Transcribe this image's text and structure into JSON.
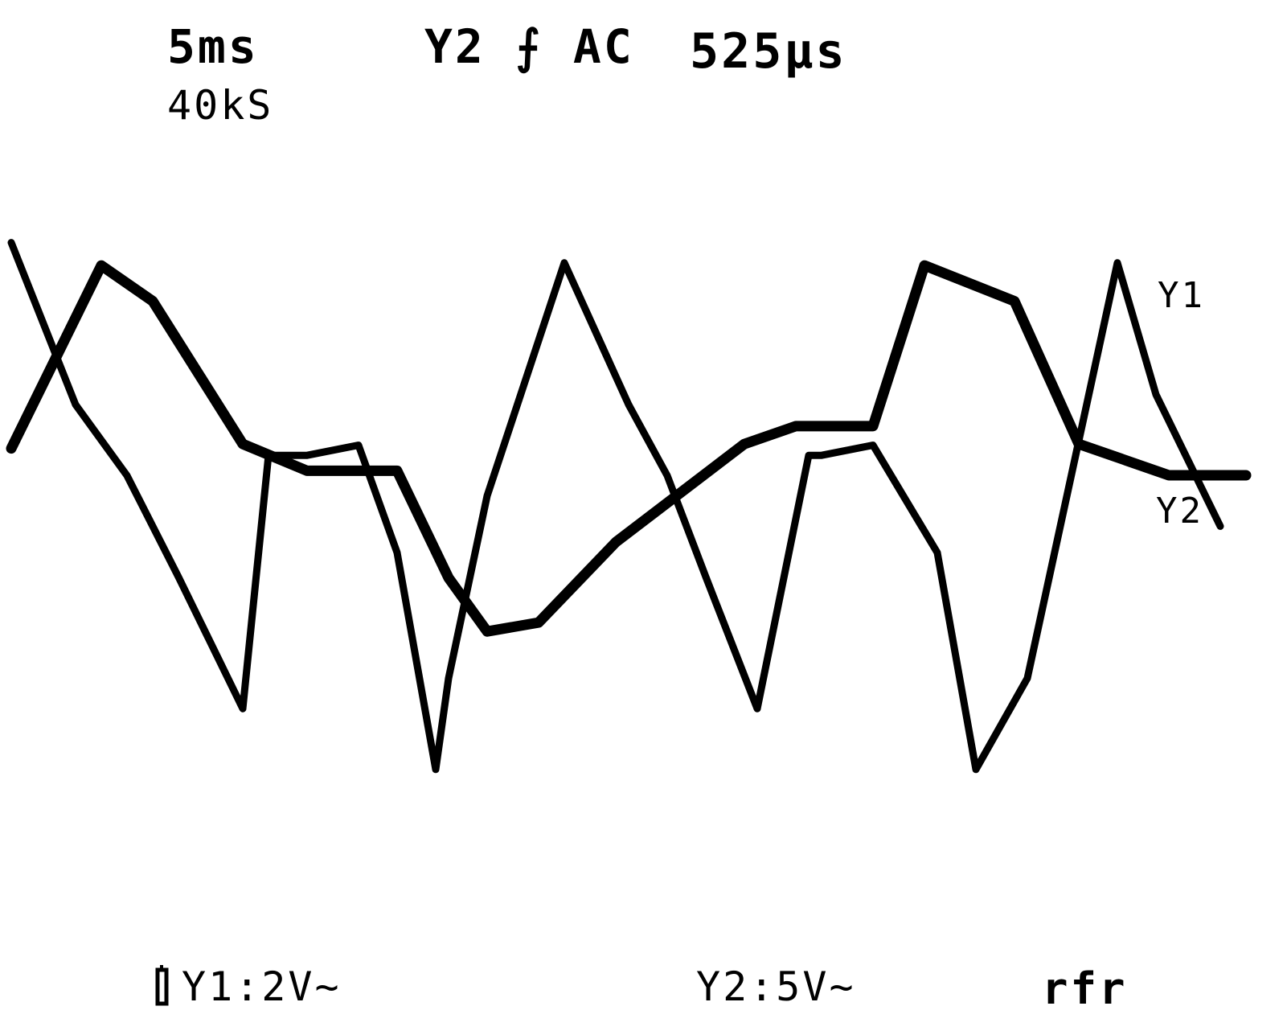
{
  "header": {
    "timebase": "5ms",
    "sample_rate": "40kS",
    "trigger": "Y2 ⨍ AC",
    "trigger_delay": "525µs"
  },
  "footer": {
    "channel1_scale": "Y1:2V~",
    "channel2_scale": "Y2:5V~",
    "mode": "rfr"
  },
  "chart_data": {
    "type": "line",
    "title": "",
    "xlabel": "",
    "ylabel": "",
    "grid": false,
    "legend": "inline trace labels at right",
    "series": [
      {
        "name": "Y1",
        "x": [
          -0.5,
          3,
          5,
          8.5,
          11,
          14.5,
          16.5,
          18,
          20,
          23,
          28,
          30,
          33,
          35,
          38.5,
          41,
          44.5,
          47.5
        ],
        "values": [
          -0.15,
          1.9,
          1.5,
          -0.1,
          -0.4,
          -0.4,
          -1.6,
          -2.2,
          -2.1,
          -1.2,
          -0.1,
          0.1,
          0.1,
          1.9,
          1.5,
          -0.1,
          -0.45,
          -0.45
        ]
      },
      {
        "name": "Y2",
        "x": [
          -0.5,
          2,
          4,
          6,
          8.5,
          9.5,
          11,
          13,
          14.5,
          16,
          16.5,
          18,
          21,
          23.5,
          25,
          26.5,
          28.5,
          30.5,
          31,
          33,
          35.5,
          37,
          39,
          42.5,
          44,
          46.5
        ],
        "values": [
          9.5,
          1.5,
          -2.0,
          -7.0,
          -13.5,
          -1.0,
          -1.0,
          -0.5,
          -5.8,
          -16.5,
          -12.0,
          -3.0,
          8.5,
          1.5,
          -2.0,
          -7.0,
          -13.5,
          -1.0,
          -1.0,
          -0.5,
          -5.8,
          -16.5,
          -12.0,
          8.5,
          2.0,
          -4.5
        ]
      }
    ]
  }
}
